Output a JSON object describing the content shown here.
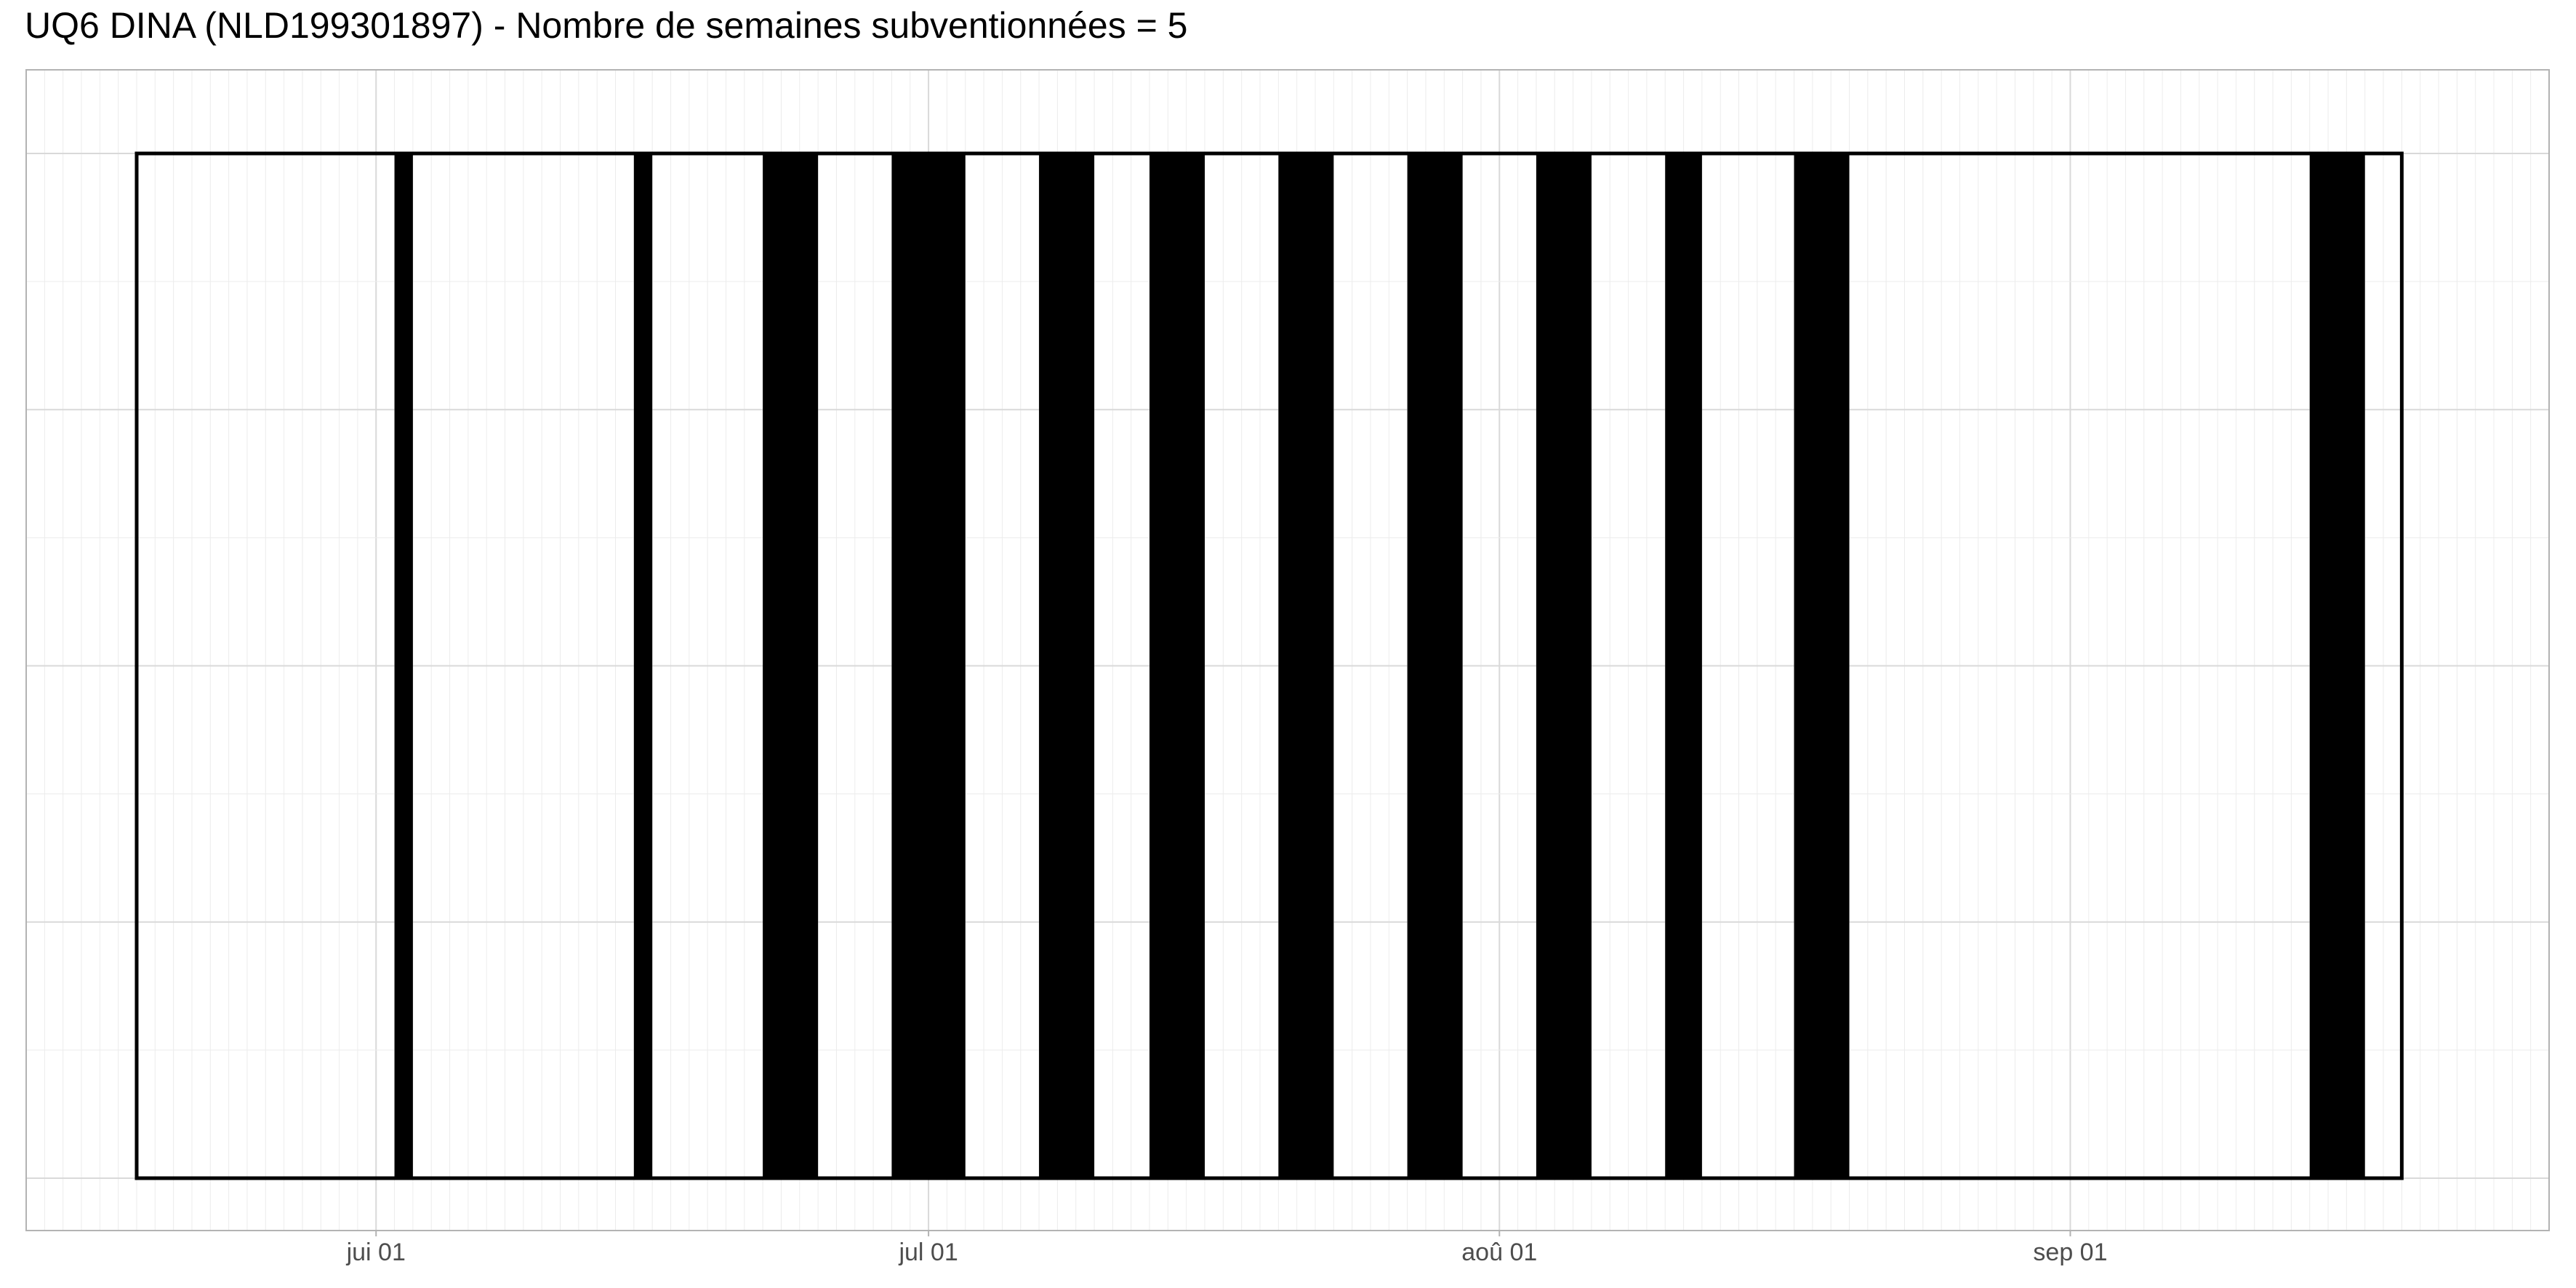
{
  "chart_data": {
    "type": "timeline",
    "title": "UQ6 DINA (NLD199301897) - Nombre de semaines subventionnées = 5",
    "xlabel": "",
    "ylabel": "",
    "xlim": [
      "2019-05-13",
      "2019-09-27"
    ],
    "x_ticks": [
      {
        "date": "2019-06-01",
        "label": "jui 01"
      },
      {
        "date": "2019-07-01",
        "label": "jul 01"
      },
      {
        "date": "2019-08-01",
        "label": "aoû 01"
      },
      {
        "date": "2019-09-01",
        "label": "sep 01"
      }
    ],
    "period": {
      "start": "2019-05-19",
      "end": "2019-09-19"
    },
    "events": [
      {
        "start": "2019-06-02",
        "end": "2019-06-03"
      },
      {
        "start": "2019-06-15",
        "end": "2019-06-16"
      },
      {
        "start": "2019-06-22",
        "end": "2019-06-25"
      },
      {
        "start": "2019-06-29",
        "end": "2019-07-03"
      },
      {
        "start": "2019-07-07",
        "end": "2019-07-10"
      },
      {
        "start": "2019-07-13",
        "end": "2019-07-16"
      },
      {
        "start": "2019-07-20",
        "end": "2019-07-23"
      },
      {
        "start": "2019-07-27",
        "end": "2019-07-30"
      },
      {
        "start": "2019-08-03",
        "end": "2019-08-06"
      },
      {
        "start": "2019-08-10",
        "end": "2019-08-12"
      },
      {
        "start": "2019-08-17",
        "end": "2019-08-20"
      },
      {
        "start": "2019-09-14",
        "end": "2019-09-17"
      }
    ],
    "grid": true,
    "colors": {
      "bar": "#000000",
      "grid_major": "#d9d9d9",
      "grid_minor": "#ececec",
      "panel_border": "#b3b3b3",
      "tick_text": "#4d4d4d"
    }
  }
}
